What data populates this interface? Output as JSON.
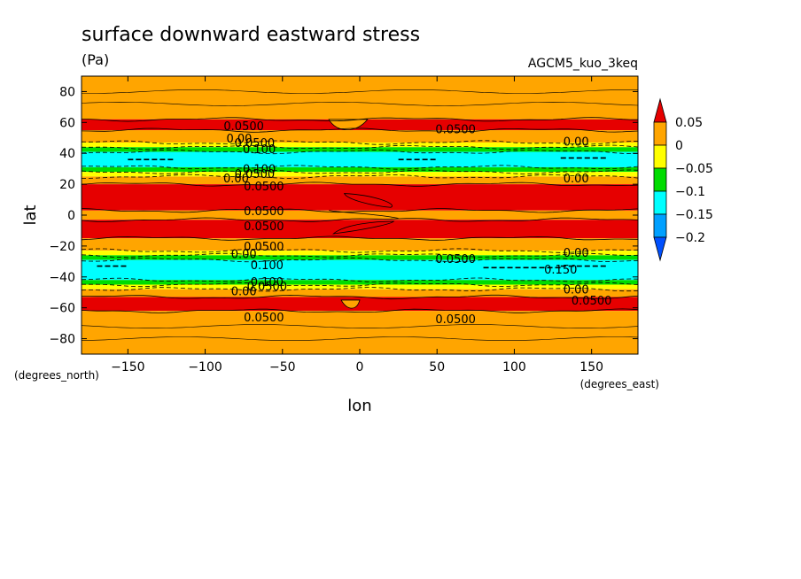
{
  "chart_data": {
    "type": "heatmap",
    "title": "surface downward eastward stress",
    "units": "(Pa)",
    "dataset": "AGCM5_kuo_3keq",
    "xlabel": "lon",
    "ylabel": "lat",
    "x_units": "(degrees_east)",
    "y_units": "(degrees_north)",
    "xlim": [
      -180,
      180
    ],
    "ylim": [
      -90,
      90
    ],
    "x_ticks": [
      -150,
      -100,
      -50,
      0,
      50,
      100,
      150
    ],
    "y_ticks": [
      80,
      60,
      40,
      20,
      0,
      -20,
      -40,
      -60,
      -80
    ],
    "colorbar": {
      "levels": [
        "0.05",
        "0",
        "-0.05",
        "-0.1",
        "-0.15",
        "-0.2"
      ],
      "colors": [
        "#e60000",
        "#ffa500",
        "#ffff00",
        "#00dc00",
        "#00ffff",
        "#00a0ff",
        "#0050ff"
      ]
    },
    "bands": [
      {
        "lat_from": 90,
        "lat_to": 62,
        "value": "0 to 0.05"
      },
      {
        "lat_from": 62,
        "lat_to": 55,
        "value": "> 0.05"
      },
      {
        "lat_from": 55,
        "lat_to": 47,
        "value": "0 to 0.05"
      },
      {
        "lat_from": 47,
        "lat_to": 44,
        "value": "-0.05 to 0"
      },
      {
        "lat_from": 44,
        "lat_to": 41,
        "value": "-0.1 to -0.05"
      },
      {
        "lat_from": 41,
        "lat_to": 31,
        "value": "-0.15 to -0.1"
      },
      {
        "lat_from": 31,
        "lat_to": 28,
        "value": "-0.1 to -0.05"
      },
      {
        "lat_from": 28,
        "lat_to": 25,
        "value": "-0.05 to 0"
      },
      {
        "lat_from": 25,
        "lat_to": 20,
        "value": "0 to 0.05"
      },
      {
        "lat_from": 20,
        "lat_to": 3,
        "value": "> 0.05"
      },
      {
        "lat_from": 3,
        "lat_to": -3,
        "value": "0 to 0.05"
      },
      {
        "lat_from": -3,
        "lat_to": -15,
        "value": "> 0.05"
      },
      {
        "lat_from": -15,
        "lat_to": -23,
        "value": "0 to 0.05"
      },
      {
        "lat_from": -23,
        "lat_to": -26,
        "value": "-0.05 to 0"
      },
      {
        "lat_from": -26,
        "lat_to": -29,
        "value": "-0.1 to -0.05"
      },
      {
        "lat_from": -29,
        "lat_to": -42,
        "value": "-0.15 to -0.1"
      },
      {
        "lat_from": -42,
        "lat_to": -45,
        "value": "-0.1 to -0.05"
      },
      {
        "lat_from": -45,
        "lat_to": -48,
        "value": "-0.05 to 0"
      },
      {
        "lat_from": -48,
        "lat_to": -53,
        "value": "0 to 0.05"
      },
      {
        "lat_from": -53,
        "lat_to": -62,
        "value": "> 0.05"
      },
      {
        "lat_from": -62,
        "lat_to": -90,
        "value": "0 to 0.05"
      }
    ],
    "contour_labels": [
      {
        "text": "0.0500",
        "lon": -75,
        "lat": 58
      },
      {
        "text": "0.0500",
        "lon": 62,
        "lat": 56
      },
      {
        "text": "0.00",
        "lon": -78,
        "lat": 50
      },
      {
        "text": "0.0500",
        "lon": -68,
        "lat": 47
      },
      {
        "text": "0.00",
        "lon": 140,
        "lat": 48
      },
      {
        "text": "0.100",
        "lon": -65,
        "lat": 43
      },
      {
        "text": "0.100",
        "lon": -65,
        "lat": 30
      },
      {
        "text": "0.0500",
        "lon": -68,
        "lat": 27
      },
      {
        "text": "0.00",
        "lon": -80,
        "lat": 24
      },
      {
        "text": "0.0500",
        "lon": -62,
        "lat": 19
      },
      {
        "text": "0.00",
        "lon": 140,
        "lat": 24
      },
      {
        "text": "0.0500",
        "lon": -62,
        "lat": 3
      },
      {
        "text": "0.0500",
        "lon": -62,
        "lat": -7
      },
      {
        "text": "0.0500",
        "lon": -62,
        "lat": -20
      },
      {
        "text": "0.00",
        "lon": -75,
        "lat": -25
      },
      {
        "text": "0.0500",
        "lon": 62,
        "lat": -28
      },
      {
        "text": "0.00",
        "lon": 140,
        "lat": -24
      },
      {
        "text": "0.100",
        "lon": -60,
        "lat": -32
      },
      {
        "text": "0.150",
        "lon": 130,
        "lat": -35
      },
      {
        "text": "0.100",
        "lon": -60,
        "lat": -43
      },
      {
        "text": "0.0500",
        "lon": -60,
        "lat": -46
      },
      {
        "text": "0.00",
        "lon": -75,
        "lat": -49
      },
      {
        "text": "0.00",
        "lon": 140,
        "lat": -48
      },
      {
        "text": "0.0500",
        "lon": 150,
        "lat": -55
      },
      {
        "text": "0.0500",
        "lon": -62,
        "lat": -66
      },
      {
        "text": "0.0500",
        "lon": 62,
        "lat": -67
      }
    ]
  }
}
